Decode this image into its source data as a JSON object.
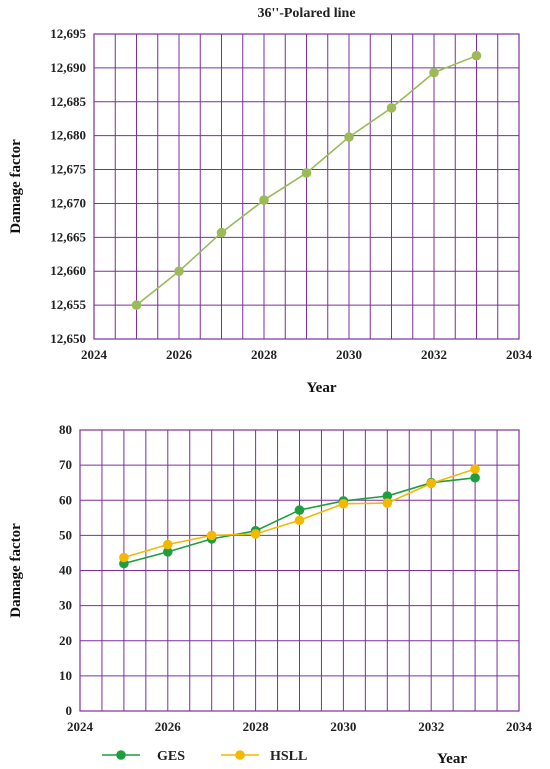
{
  "chart_data": [
    {
      "type": "line",
      "title": "36''-Polared line",
      "xlabel": "Year",
      "ylabel": "Damage factor",
      "xlim": [
        2024,
        2034
      ],
      "ylim": [
        12.65,
        12.695
      ],
      "x_ticks": [
        2024,
        2026,
        2028,
        2030,
        2032,
        2034
      ],
      "y_ticks": [
        12.65,
        12.655,
        12.66,
        12.665,
        12.67,
        12.675,
        12.68,
        12.685,
        12.69,
        12.695
      ],
      "y_tick_labels": [
        "12,650",
        "12,655",
        "12,660",
        "12,665",
        "12,670",
        "12,675",
        "12,680",
        "12,685",
        "12,690",
        "12,695"
      ],
      "grid": true,
      "grid_color": "#7b2fa0",
      "series": [
        {
          "color": "#9bbb59",
          "x": [
            2025,
            2026,
            2027,
            2028,
            2029,
            2030,
            2031,
            2032,
            2033
          ],
          "y": [
            12.655,
            12.66,
            12.6657,
            12.6705,
            12.6745,
            12.6798,
            12.6841,
            12.6893,
            12.6918
          ]
        }
      ]
    },
    {
      "type": "line",
      "title": "",
      "xlabel": "Year",
      "ylabel": "Damage factor",
      "xlim": [
        2024,
        2034
      ],
      "ylim": [
        0,
        80
      ],
      "x_ticks": [
        2024,
        2026,
        2028,
        2030,
        2032,
        2034
      ],
      "y_ticks": [
        0,
        10,
        20,
        30,
        40,
        50,
        60,
        70,
        80
      ],
      "y_tick_labels": [
        "0",
        "10",
        "20",
        "30",
        "40",
        "50",
        "60",
        "70",
        "80"
      ],
      "grid": true,
      "grid_color": "#7b2fa0",
      "legend": "bottom-left",
      "series": [
        {
          "name": "GES",
          "color": "#1e9e3e",
          "x": [
            2025,
            2026,
            2027,
            2028,
            2029,
            2030,
            2031,
            2032,
            2033
          ],
          "y": [
            42.0,
            45.3,
            49.0,
            51.3,
            57.2,
            59.8,
            61.2,
            65.0,
            66.4
          ]
        },
        {
          "name": "HSLL",
          "color": "#f5b800",
          "x": [
            2025,
            2026,
            2027,
            2028,
            2029,
            2030,
            2031,
            2032,
            2033
          ],
          "y": [
            43.7,
            47.4,
            50.0,
            50.4,
            54.3,
            59.0,
            59.2,
            64.8,
            68.9
          ]
        }
      ]
    }
  ]
}
